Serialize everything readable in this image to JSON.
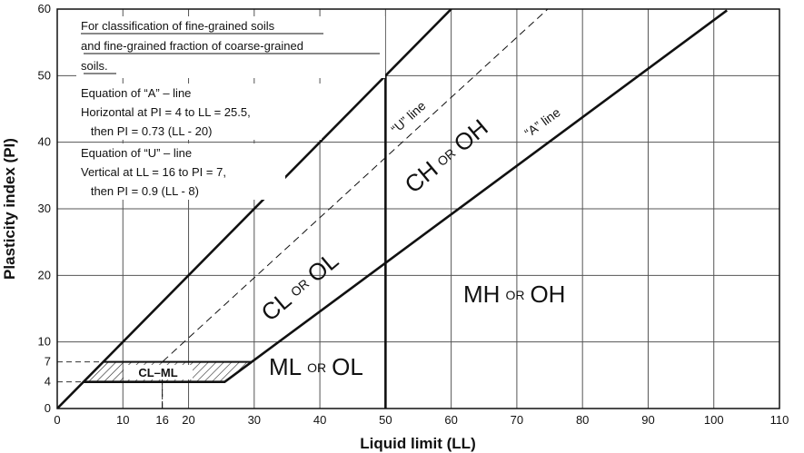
{
  "chart_data": {
    "type": "line",
    "title": "",
    "xlabel": "Liquid limit (LL)",
    "ylabel": "Plasticity index (PI)",
    "xlim": [
      0,
      110
    ],
    "ylim": [
      0,
      60
    ],
    "x_ticks": [
      "0",
      "10",
      "16",
      "20",
      "30",
      "40",
      "50",
      "60",
      "70",
      "80",
      "90",
      "100",
      "110"
    ],
    "x_tick_values": [
      0,
      10,
      16,
      20,
      30,
      40,
      50,
      60,
      70,
      80,
      90,
      100,
      110
    ],
    "y_ticks": [
      "0",
      "4",
      "7",
      "10",
      "20",
      "30",
      "40",
      "50",
      "60"
    ],
    "y_tick_values": [
      0,
      4,
      7,
      10,
      20,
      30,
      40,
      50,
      60
    ],
    "grid": true,
    "series": [
      {
        "name": "“A” line",
        "style": "solid",
        "points": [
          [
            4,
            4
          ],
          [
            25.5,
            4
          ],
          [
            102,
            59.8
          ]
        ]
      },
      {
        "name": "“U” line",
        "style": "dashed",
        "points": [
          [
            16,
            0
          ],
          [
            16,
            7
          ],
          [
            74.7,
            60
          ]
        ]
      },
      {
        "name": "",
        "style": "solid",
        "points": [
          [
            0,
            0
          ],
          [
            60,
            60
          ]
        ]
      },
      {
        "name": "",
        "style": "solid",
        "points": [
          [
            50,
            0
          ],
          [
            50,
            50
          ]
        ]
      }
    ],
    "annotations": {
      "note_lines": [
        "For classification of fine-grained soils",
        " and fine-grained fraction of coarse-grained",
        " soils."
      ],
      "a_eq_lines": [
        "Equation of “A” – line",
        "Horizontal at PI = 4 to LL = 25.5,",
        "   then PI = 0.73 (LL - 20)"
      ],
      "u_eq_lines": [
        "Equation of “U” – line",
        "Vertical at LL = 16 to PI = 7,",
        "   then PI = 0.9 (LL - 8)"
      ],
      "a_line_label": "“A” line",
      "u_line_label": "“U” line",
      "zones": {
        "ch_oh": {
          "a": "CH",
          "or": "OR",
          "b": "OH"
        },
        "cl_ol": {
          "a": "CL",
          "or": "OR",
          "b": "OL"
        },
        "mh_oh": {
          "a": "MH",
          "or": "OR",
          "b": "OH"
        },
        "ml_ol": {
          "a": "ML",
          "or": "OR",
          "b": "OL"
        },
        "cl_ml": "CL–ML"
      }
    }
  }
}
